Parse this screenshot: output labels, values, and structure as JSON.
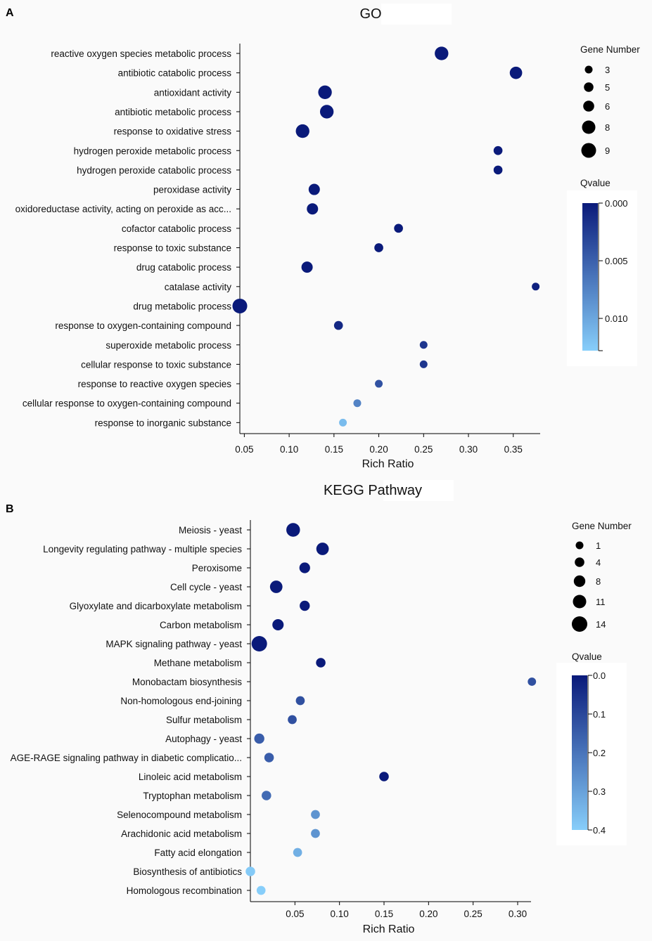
{
  "panels": [
    {
      "label": "A"
    },
    {
      "label": "B"
    }
  ],
  "chart_data": [
    {
      "type": "scatter",
      "title": "GO",
      "xlabel": "Rich Ratio",
      "ylabel": "",
      "xlim": [
        0.045,
        0.38
      ],
      "xticks": [
        0.05,
        0.1,
        0.15,
        0.2,
        0.25,
        0.3,
        0.35
      ],
      "xtick_labels": [
        "0.05",
        "0.10",
        "0.15",
        "0.20",
        "0.25",
        "0.30",
        "0.35"
      ],
      "categories": [
        "reactive oxygen species metabolic process",
        "antibiotic catabolic process",
        "antioxidant activity",
        "antibiotic metabolic process",
        "response to oxidative stress",
        "hydrogen peroxide metabolic process",
        "hydrogen peroxide catabolic process",
        "peroxidase activity",
        "oxidoreductase activity, acting on peroxide as acc...",
        "cofactor catabolic process",
        "response to toxic substance",
        "drug catabolic process",
        "catalase activity",
        "drug metabolic process",
        "response to oxygen-containing compound",
        "superoxide metabolic process",
        "cellular response to toxic substance",
        "response to reactive oxygen species",
        "cellular response to oxygen-containing compound",
        "response to inorganic substance"
      ],
      "x": [
        0.27,
        0.353,
        0.14,
        0.142,
        0.115,
        0.333,
        0.333,
        0.128,
        0.126,
        0.222,
        0.2,
        0.12,
        0.375,
        0.045,
        0.155,
        0.25,
        0.25,
        0.2,
        0.176,
        0.16
      ],
      "gene_number": [
        8,
        7,
        8,
        8,
        8,
        4,
        4,
        6,
        6,
        4,
        4,
        6,
        3,
        9,
        4,
        3,
        3,
        3,
        3,
        3
      ],
      "qvalue": [
        0.0,
        0.0,
        0.0,
        0.0,
        0.0,
        0.0,
        0.0,
        0.0,
        0.0,
        0.0,
        0.0,
        0.0,
        0.0005,
        0.0,
        0.001,
        0.002,
        0.002,
        0.004,
        0.0075,
        0.0115
      ],
      "size_legend": {
        "title": "Gene Number",
        "values": [
          3,
          5,
          6,
          8,
          9
        ],
        "labels": [
          "3",
          "5",
          "6",
          "8",
          "9"
        ]
      },
      "color_legend": {
        "title": "Qvalue",
        "range": [
          0.0,
          0.0128
        ],
        "ticks": [
          0.0,
          0.005,
          0.01
        ],
        "tick_labels": [
          "0.000",
          "0.005",
          "0.010"
        ],
        "colors": [
          "#0a1a7a",
          "#87cefa"
        ]
      }
    },
    {
      "type": "scatter",
      "title": "KEGG Pathway",
      "xlabel": "Rich Ratio",
      "ylabel": "",
      "xlim": [
        0.0,
        0.315
      ],
      "xticks": [
        0.05,
        0.1,
        0.15,
        0.2,
        0.25,
        0.3
      ],
      "xtick_labels": [
        "0.05",
        "0.10",
        "0.15",
        "0.20",
        "0.25",
        "0.30"
      ],
      "categories": [
        "Meiosis - yeast",
        "Longevity regulating pathway - multiple species",
        "Peroxisome",
        "Cell cycle - yeast",
        "Glyoxylate and dicarboxylate metabolism",
        "Carbon metabolism",
        "MAPK signaling pathway - yeast",
        "Methane metabolism",
        "Monobactam biosynthesis",
        "Non-homologous end-joining",
        "Sulfur metabolism",
        "Autophagy - yeast",
        "AGE-RAGE signaling pathway in diabetic complicatio...",
        "Linoleic acid metabolism",
        "Tryptophan metabolism",
        "Selenocompound metabolism",
        "Arachidonic acid metabolism",
        "Fatty acid elongation",
        "Biosynthesis of antibiotics",
        "Homologous recombination"
      ],
      "x": [
        0.048,
        0.081,
        0.061,
        0.029,
        0.061,
        0.031,
        0.01,
        0.079,
        0.316,
        0.056,
        0.047,
        0.01,
        0.021,
        0.15,
        0.018,
        0.073,
        0.073,
        0.053,
        0.0,
        0.012
      ],
      "gene_number": [
        11,
        9,
        6,
        9,
        5,
        7,
        14,
        4,
        2,
        3,
        3,
        5,
        4,
        4,
        4,
        3,
        3,
        3,
        4,
        3
      ],
      "qvalue": [
        0.0,
        0.0,
        0.0,
        0.0,
        0.0,
        0.0,
        0.0,
        0.0,
        0.12,
        0.12,
        0.12,
        0.15,
        0.15,
        0.0,
        0.18,
        0.27,
        0.27,
        0.33,
        0.39,
        0.4
      ],
      "size_legend": {
        "title": "Gene Number",
        "values": [
          1,
          4,
          8,
          11,
          14
        ],
        "labels": [
          "1",
          "4",
          "8",
          "11",
          "14"
        ]
      },
      "color_legend": {
        "title": "Qvalue",
        "range": [
          0.0,
          0.4
        ],
        "ticks": [
          0.0,
          0.1,
          0.2,
          0.3,
          0.4
        ],
        "tick_labels": [
          "0.0",
          "0.1",
          "0.2",
          "0.3",
          "0.4"
        ],
        "colors": [
          "#0a1a7a",
          "#87cefa"
        ]
      }
    }
  ]
}
